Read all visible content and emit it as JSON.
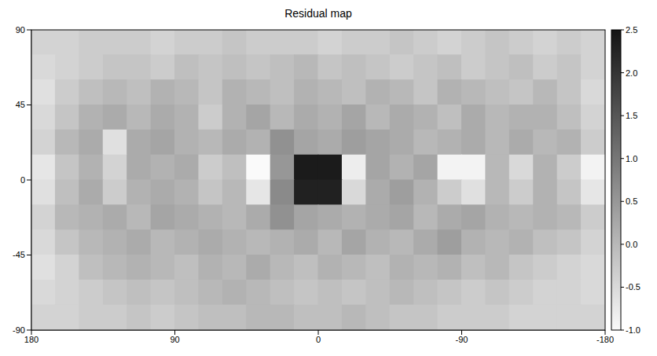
{
  "chart_data": {
    "type": "heatmap",
    "title": "Residual map",
    "x": [
      172.5,
      157.5,
      142.5,
      127.5,
      112.5,
      97.5,
      82.5,
      67.5,
      52.5,
      37.5,
      22.5,
      7.5,
      -7.5,
      -22.5,
      -37.5,
      -52.5,
      -67.5,
      -82.5,
      -97.5,
      -112.5,
      -127.5,
      -142.5,
      -157.5,
      -172.5
    ],
    "y": [
      82.5,
      67.5,
      52.5,
      37.5,
      22.5,
      7.5,
      -7.5,
      -22.5,
      -37.5,
      -52.5,
      -67.5,
      -82.5
    ],
    "values": [
      [
        -0.4,
        -0.4,
        -0.3,
        -0.3,
        -0.3,
        -0.4,
        -0.3,
        -0.3,
        -0.2,
        -0.3,
        -0.3,
        -0.3,
        -0.4,
        -0.3,
        -0.3,
        -0.2,
        -0.3,
        -0.4,
        -0.3,
        -0.2,
        -0.3,
        -0.4,
        -0.3,
        -0.4
      ],
      [
        -0.5,
        -0.4,
        -0.3,
        -0.2,
        -0.2,
        -0.3,
        -0.1,
        -0.2,
        -0.1,
        -0.2,
        -0.1,
        0.0,
        -0.2,
        -0.1,
        -0.2,
        -0.3,
        -0.2,
        -0.1,
        -0.3,
        -0.2,
        -0.1,
        -0.3,
        -0.2,
        -0.4
      ],
      [
        -0.6,
        -0.3,
        -0.1,
        0.0,
        -0.1,
        0.1,
        0.0,
        -0.2,
        0.1,
        0.0,
        -0.1,
        0.1,
        0.0,
        -0.1,
        0.1,
        0.0,
        -0.2,
        0.1,
        0.0,
        -0.1,
        -0.2,
        0.0,
        -0.2,
        -0.5
      ],
      [
        -0.5,
        -0.2,
        0.1,
        0.2,
        0.0,
        0.2,
        0.1,
        -0.3,
        0.1,
        0.3,
        0.0,
        0.2,
        0.1,
        0.3,
        0.0,
        0.2,
        0.1,
        -0.1,
        0.2,
        0.0,
        0.1,
        0.1,
        -0.1,
        -0.4
      ],
      [
        -0.4,
        0.0,
        0.2,
        -0.6,
        0.2,
        0.3,
        0.1,
        0.0,
        0.2,
        0.1,
        0.6,
        0.3,
        0.2,
        0.4,
        0.3,
        0.2,
        0.0,
        0.1,
        0.2,
        0.0,
        0.2,
        0.0,
        0.1,
        -0.3
      ],
      [
        -0.7,
        -0.2,
        0.1,
        -0.4,
        0.2,
        0.1,
        0.2,
        -0.3,
        -0.1,
        -1.0,
        0.5,
        2.4,
        2.4,
        -0.8,
        0.3,
        0.1,
        0.3,
        -0.9,
        -0.9,
        0.0,
        -0.5,
        0.1,
        -0.3,
        -0.9
      ],
      [
        -0.6,
        -0.1,
        0.2,
        -0.3,
        0.1,
        0.2,
        0.1,
        -0.2,
        0.0,
        -0.7,
        0.7,
        2.3,
        2.3,
        -0.5,
        0.2,
        0.4,
        0.1,
        -0.3,
        -0.6,
        0.0,
        -0.3,
        0.1,
        -0.2,
        -0.7
      ],
      [
        -0.4,
        0.0,
        0.1,
        0.2,
        0.0,
        0.3,
        0.2,
        0.1,
        0.0,
        0.2,
        0.6,
        0.3,
        0.2,
        0.1,
        0.2,
        0.3,
        0.0,
        0.2,
        0.3,
        0.1,
        0.0,
        0.1,
        0.0,
        -0.3
      ],
      [
        -0.5,
        -0.2,
        0.0,
        0.1,
        0.2,
        0.0,
        0.1,
        0.2,
        0.1,
        0.0,
        0.1,
        0.2,
        0.0,
        0.3,
        0.1,
        0.0,
        0.2,
        0.4,
        0.1,
        0.0,
        0.1,
        -0.1,
        -0.2,
        -0.4
      ],
      [
        -0.6,
        -0.4,
        -0.1,
        0.0,
        0.1,
        0.0,
        -0.1,
        0.1,
        0.0,
        0.2,
        0.0,
        -0.1,
        0.1,
        0.0,
        -0.1,
        0.1,
        0.0,
        0.1,
        -0.1,
        0.0,
        -0.2,
        -0.3,
        -0.4,
        -0.5
      ],
      [
        -0.5,
        -0.4,
        -0.3,
        -0.2,
        -0.1,
        -0.2,
        -0.1,
        0.0,
        0.1,
        0.0,
        -0.1,
        -0.2,
        -0.1,
        -0.2,
        -0.1,
        0.0,
        -0.1,
        -0.2,
        -0.3,
        -0.2,
        -0.3,
        -0.4,
        -0.4,
        -0.5
      ],
      [
        -0.4,
        -0.4,
        -0.3,
        -0.3,
        -0.2,
        -0.3,
        -0.2,
        -0.1,
        -0.1,
        0.0,
        0.0,
        -0.1,
        -0.1,
        0.0,
        -0.1,
        -0.2,
        -0.2,
        -0.3,
        -0.3,
        -0.3,
        -0.4,
        -0.4,
        -0.4,
        -0.4
      ]
    ],
    "xlim": [
      180,
      -180
    ],
    "xticks": [
      180,
      90,
      0,
      -90,
      -180
    ],
    "ylim": [
      -90,
      90
    ],
    "yticks": [
      -90,
      -45,
      0,
      45,
      90
    ],
    "colorbar_range": [
      -1,
      2.5
    ],
    "colorbar_ticks": [
      {
        "value": -1,
        "label": "-1.0"
      },
      -0.5,
      {
        "value": 0,
        "label": "0.0"
      },
      0.5,
      {
        "value": 1,
        "label": "1.0"
      },
      1.5,
      {
        "value": 2,
        "label": "2.0"
      },
      2.5
    ]
  }
}
